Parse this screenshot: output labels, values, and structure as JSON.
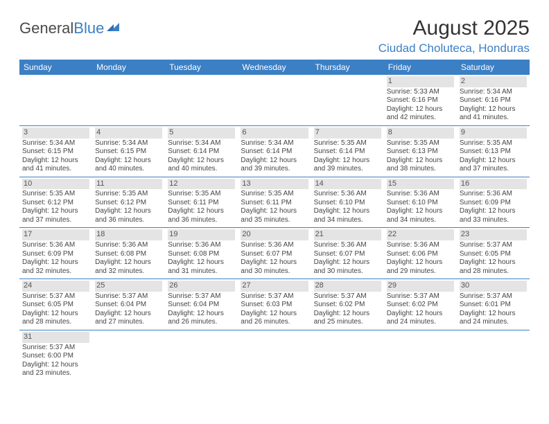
{
  "logo": {
    "text1": "General",
    "text2": "Blue"
  },
  "title": "August 2025",
  "location": "Ciudad Choluteca, Honduras",
  "colors": {
    "header_bg": "#3b7fc4",
    "header_fg": "#ffffff",
    "border": "#3b7fc4",
    "shade_bg": "#e4e4e4",
    "text": "#444444",
    "logo_gray": "#4a4a4a",
    "logo_blue": "#3b7fc4"
  },
  "day_headers": [
    "Sunday",
    "Monday",
    "Tuesday",
    "Wednesday",
    "Thursday",
    "Friday",
    "Saturday"
  ],
  "weeks": [
    [
      null,
      null,
      null,
      null,
      null,
      {
        "n": "1",
        "sr": "Sunrise: 5:33 AM",
        "ss": "Sunset: 6:16 PM",
        "d1": "Daylight: 12 hours",
        "d2": "and 42 minutes."
      },
      {
        "n": "2",
        "sr": "Sunrise: 5:34 AM",
        "ss": "Sunset: 6:16 PM",
        "d1": "Daylight: 12 hours",
        "d2": "and 41 minutes."
      }
    ],
    [
      {
        "n": "3",
        "sr": "Sunrise: 5:34 AM",
        "ss": "Sunset: 6:15 PM",
        "d1": "Daylight: 12 hours",
        "d2": "and 41 minutes."
      },
      {
        "n": "4",
        "sr": "Sunrise: 5:34 AM",
        "ss": "Sunset: 6:15 PM",
        "d1": "Daylight: 12 hours",
        "d2": "and 40 minutes."
      },
      {
        "n": "5",
        "sr": "Sunrise: 5:34 AM",
        "ss": "Sunset: 6:14 PM",
        "d1": "Daylight: 12 hours",
        "d2": "and 40 minutes."
      },
      {
        "n": "6",
        "sr": "Sunrise: 5:34 AM",
        "ss": "Sunset: 6:14 PM",
        "d1": "Daylight: 12 hours",
        "d2": "and 39 minutes."
      },
      {
        "n": "7",
        "sr": "Sunrise: 5:35 AM",
        "ss": "Sunset: 6:14 PM",
        "d1": "Daylight: 12 hours",
        "d2": "and 39 minutes."
      },
      {
        "n": "8",
        "sr": "Sunrise: 5:35 AM",
        "ss": "Sunset: 6:13 PM",
        "d1": "Daylight: 12 hours",
        "d2": "and 38 minutes."
      },
      {
        "n": "9",
        "sr": "Sunrise: 5:35 AM",
        "ss": "Sunset: 6:13 PM",
        "d1": "Daylight: 12 hours",
        "d2": "and 37 minutes."
      }
    ],
    [
      {
        "n": "10",
        "sr": "Sunrise: 5:35 AM",
        "ss": "Sunset: 6:12 PM",
        "d1": "Daylight: 12 hours",
        "d2": "and 37 minutes."
      },
      {
        "n": "11",
        "sr": "Sunrise: 5:35 AM",
        "ss": "Sunset: 6:12 PM",
        "d1": "Daylight: 12 hours",
        "d2": "and 36 minutes."
      },
      {
        "n": "12",
        "sr": "Sunrise: 5:35 AM",
        "ss": "Sunset: 6:11 PM",
        "d1": "Daylight: 12 hours",
        "d2": "and 36 minutes."
      },
      {
        "n": "13",
        "sr": "Sunrise: 5:35 AM",
        "ss": "Sunset: 6:11 PM",
        "d1": "Daylight: 12 hours",
        "d2": "and 35 minutes."
      },
      {
        "n": "14",
        "sr": "Sunrise: 5:36 AM",
        "ss": "Sunset: 6:10 PM",
        "d1": "Daylight: 12 hours",
        "d2": "and 34 minutes."
      },
      {
        "n": "15",
        "sr": "Sunrise: 5:36 AM",
        "ss": "Sunset: 6:10 PM",
        "d1": "Daylight: 12 hours",
        "d2": "and 34 minutes."
      },
      {
        "n": "16",
        "sr": "Sunrise: 5:36 AM",
        "ss": "Sunset: 6:09 PM",
        "d1": "Daylight: 12 hours",
        "d2": "and 33 minutes."
      }
    ],
    [
      {
        "n": "17",
        "sr": "Sunrise: 5:36 AM",
        "ss": "Sunset: 6:09 PM",
        "d1": "Daylight: 12 hours",
        "d2": "and 32 minutes."
      },
      {
        "n": "18",
        "sr": "Sunrise: 5:36 AM",
        "ss": "Sunset: 6:08 PM",
        "d1": "Daylight: 12 hours",
        "d2": "and 32 minutes."
      },
      {
        "n": "19",
        "sr": "Sunrise: 5:36 AM",
        "ss": "Sunset: 6:08 PM",
        "d1": "Daylight: 12 hours",
        "d2": "and 31 minutes."
      },
      {
        "n": "20",
        "sr": "Sunrise: 5:36 AM",
        "ss": "Sunset: 6:07 PM",
        "d1": "Daylight: 12 hours",
        "d2": "and 30 minutes."
      },
      {
        "n": "21",
        "sr": "Sunrise: 5:36 AM",
        "ss": "Sunset: 6:07 PM",
        "d1": "Daylight: 12 hours",
        "d2": "and 30 minutes."
      },
      {
        "n": "22",
        "sr": "Sunrise: 5:36 AM",
        "ss": "Sunset: 6:06 PM",
        "d1": "Daylight: 12 hours",
        "d2": "and 29 minutes."
      },
      {
        "n": "23",
        "sr": "Sunrise: 5:37 AM",
        "ss": "Sunset: 6:05 PM",
        "d1": "Daylight: 12 hours",
        "d2": "and 28 minutes."
      }
    ],
    [
      {
        "n": "24",
        "sr": "Sunrise: 5:37 AM",
        "ss": "Sunset: 6:05 PM",
        "d1": "Daylight: 12 hours",
        "d2": "and 28 minutes."
      },
      {
        "n": "25",
        "sr": "Sunrise: 5:37 AM",
        "ss": "Sunset: 6:04 PM",
        "d1": "Daylight: 12 hours",
        "d2": "and 27 minutes."
      },
      {
        "n": "26",
        "sr": "Sunrise: 5:37 AM",
        "ss": "Sunset: 6:04 PM",
        "d1": "Daylight: 12 hours",
        "d2": "and 26 minutes."
      },
      {
        "n": "27",
        "sr": "Sunrise: 5:37 AM",
        "ss": "Sunset: 6:03 PM",
        "d1": "Daylight: 12 hours",
        "d2": "and 26 minutes."
      },
      {
        "n": "28",
        "sr": "Sunrise: 5:37 AM",
        "ss": "Sunset: 6:02 PM",
        "d1": "Daylight: 12 hours",
        "d2": "and 25 minutes."
      },
      {
        "n": "29",
        "sr": "Sunrise: 5:37 AM",
        "ss": "Sunset: 6:02 PM",
        "d1": "Daylight: 12 hours",
        "d2": "and 24 minutes."
      },
      {
        "n": "30",
        "sr": "Sunrise: 5:37 AM",
        "ss": "Sunset: 6:01 PM",
        "d1": "Daylight: 12 hours",
        "d2": "and 24 minutes."
      }
    ],
    [
      {
        "n": "31",
        "sr": "Sunrise: 5:37 AM",
        "ss": "Sunset: 6:00 PM",
        "d1": "Daylight: 12 hours",
        "d2": "and 23 minutes."
      },
      null,
      null,
      null,
      null,
      null,
      null
    ]
  ]
}
